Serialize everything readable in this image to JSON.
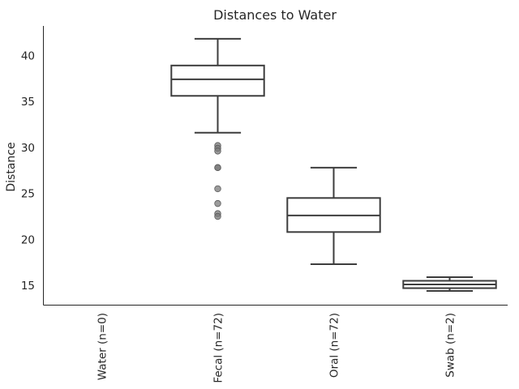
{
  "chart_data": {
    "type": "box",
    "title": "Distances to Water",
    "xlabel": "",
    "ylabel": "Distance",
    "ylim": [
      12.9,
      43.2
    ],
    "yticks": [
      15,
      20,
      25,
      30,
      35,
      40
    ],
    "grid": false,
    "categories": [
      "Water (n=0)",
      "Fecal (n=72)",
      "Oral (n=72)",
      "Swab (n=2)"
    ],
    "boxes": [
      null,
      {
        "whisker_low": 31.6,
        "q1": 35.6,
        "median": 37.4,
        "q3": 38.9,
        "whisker_high": 41.8,
        "outliers": [
          30.2,
          29.9,
          29.6,
          27.8,
          27.8,
          25.5,
          23.9,
          22.8,
          22.5
        ]
      },
      {
        "whisker_low": 17.3,
        "q1": 20.8,
        "median": 22.6,
        "q3": 24.5,
        "whisker_high": 27.8,
        "outliers": []
      },
      {
        "whisker_low": 14.4,
        "q1": 14.7,
        "median": 15.1,
        "q3": 15.5,
        "whisker_high": 15.9,
        "outliers": []
      }
    ],
    "colors": {
      "box_fill": "#ffffff",
      "line": "#3d3d3d",
      "outlier": "#7a7a7a"
    }
  }
}
